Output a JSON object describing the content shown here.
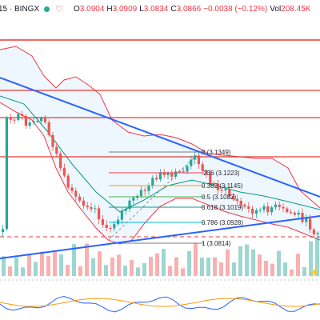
{
  "header": {
    "symbol": "15 · BINGX",
    "o_label": "O",
    "o_value": "3.0904",
    "h_label": "H",
    "h_value": "3.0909",
    "l_label": "L",
    "l_value": "3.0834",
    "c_label": "C",
    "c_value": "3.0866",
    "change": "−0.0038 (−0.12%)",
    "vol_label": "Vol",
    "vol_value": "208.45K",
    "status_color": "#22ab94"
  },
  "fib_levels": [
    {
      "ratio": "0",
      "price": "3.1349",
      "label": "0 (3.1349)",
      "color": "#787b86"
    },
    {
      "ratio": "0.236",
      "price": "3.1223",
      "label": ".236 (3.1223)",
      "color": "#f23645"
    },
    {
      "ratio": "0.382",
      "price": "3.1145",
      "label": "0.382 (3.1145)",
      "color": "#ff9800"
    },
    {
      "ratio": "0.5",
      "price": "3.1082",
      "label": "0.5 (3.1082)",
      "color": "#4caf50"
    },
    {
      "ratio": "0.618",
      "price": "3.1019",
      "label": "0.618 (3.1019)",
      "color": "#089981"
    },
    {
      "ratio": "0.786",
      "price": "3.0928",
      "label": "0.786 (3.0928)",
      "color": "#00bcd4"
    },
    {
      "ratio": "1",
      "price": "3.0814",
      "label": "1 (3.0814)",
      "color": "#787b86"
    }
  ],
  "colors": {
    "up": "#26a69a",
    "down": "#ef5350",
    "trendline": "#2962ff",
    "resistance": "#e53935",
    "bollinger": "#f23645",
    "ema": "#089981",
    "band_fill": "#2196f3"
  },
  "indicator_icon": "lightning-icon"
}
